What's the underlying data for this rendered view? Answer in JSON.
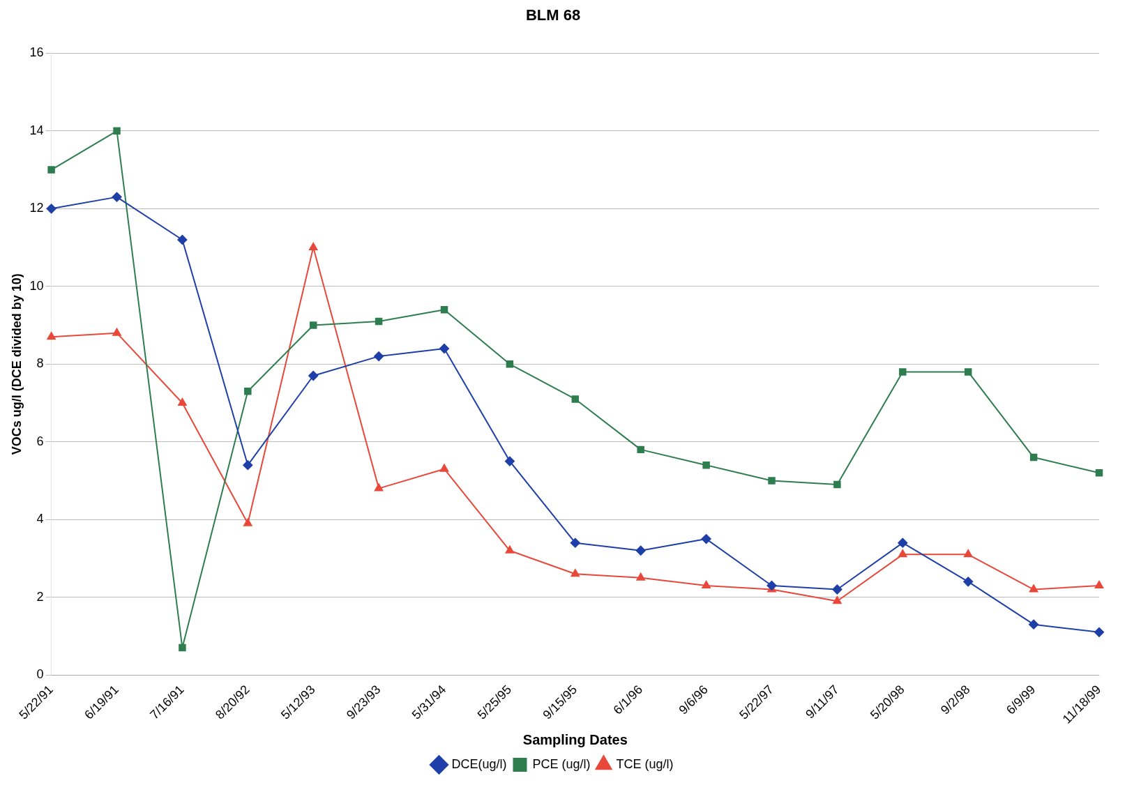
{
  "chart_data": {
    "type": "line",
    "title": "BLM 68",
    "xlabel": "Sampling Dates",
    "ylabel": "VOCs ug/l (DCE divided by 10)",
    "categories": [
      "5/22/91",
      "6/19/91",
      "7/16/91",
      "8/20/92",
      "5/12/93",
      "9/23/93",
      "5/31/94",
      "5/25/95",
      "9/15/95",
      "6/1/96",
      "9/6/96",
      "5/22/97",
      "9/11/97",
      "5/20/98",
      "9/2/98",
      "6/9/99",
      "11/18/99"
    ],
    "series": [
      {
        "name": "DCE(ug/l)",
        "color": "#1f3fa8",
        "marker": "diamond",
        "values": [
          12,
          12.3,
          11.2,
          5.4,
          7.7,
          8.2,
          8.4,
          5.5,
          3.4,
          3.2,
          3.5,
          2.3,
          2.2,
          3.4,
          2.4,
          1.3,
          1.1
        ]
      },
      {
        "name": "PCE (ug/l)",
        "color": "#2e7d4f",
        "marker": "square",
        "values": [
          13,
          14,
          0.7,
          7.3,
          9,
          9.1,
          9.4,
          8,
          7.1,
          5.8,
          5.4,
          5,
          4.9,
          7.8,
          7.8,
          5.6,
          5.2
        ]
      },
      {
        "name": "TCE (ug/l)",
        "color": "#e8483a",
        "marker": "triangle",
        "values": [
          8.7,
          8.8,
          7,
          3.9,
          11,
          4.8,
          5.3,
          3.2,
          2.6,
          2.5,
          2.3,
          2.2,
          1.9,
          3.1,
          3.1,
          2.2,
          2.3
        ]
      }
    ],
    "ylim": [
      0,
      16
    ],
    "yticks": [
      0,
      2,
      4,
      6,
      8,
      10,
      12,
      14,
      16
    ],
    "grid": "y",
    "legend": "bottom",
    "line_style": "solid"
  }
}
